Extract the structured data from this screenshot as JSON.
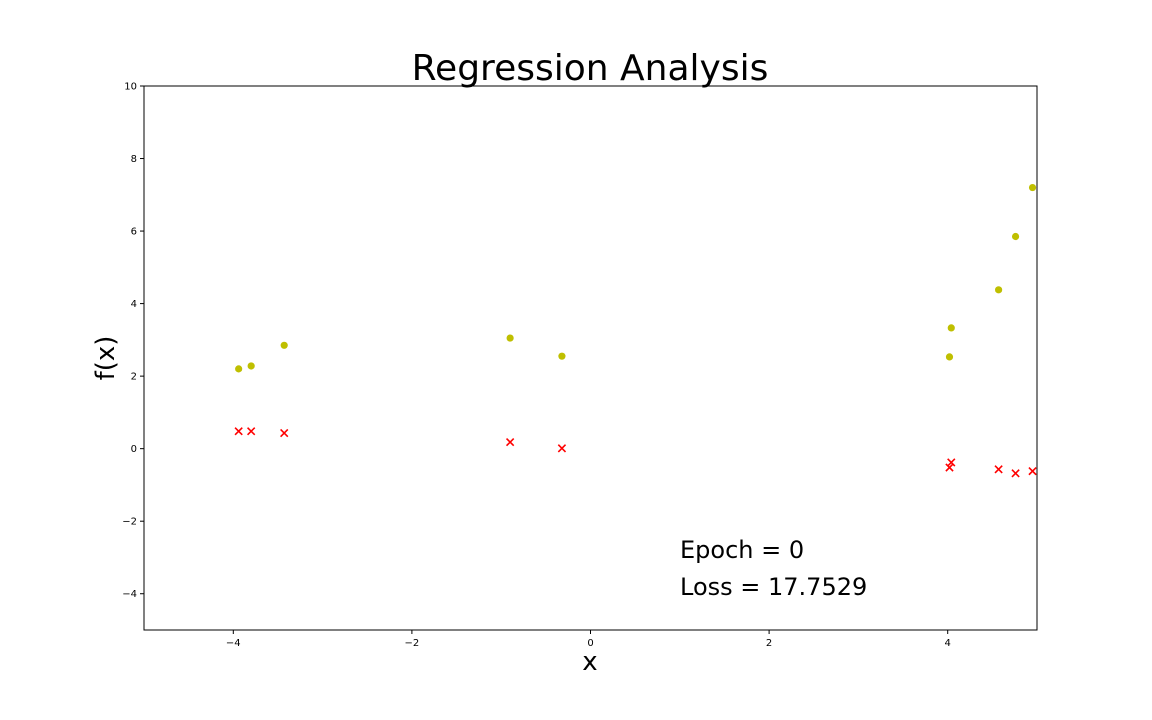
{
  "chart_data": {
    "type": "scatter",
    "title": "Regression Analysis",
    "xlabel": "x",
    "ylabel": "f(x)",
    "xlim": [
      -5,
      5
    ],
    "ylim": [
      -5,
      10
    ],
    "xticks": [
      -4,
      -2,
      0,
      2,
      4
    ],
    "xtick_labels": [
      "−4",
      "−2",
      "0",
      "2",
      "4"
    ],
    "yticks": [
      -4,
      -2,
      0,
      2,
      4,
      6,
      8,
      10
    ],
    "ytick_labels": [
      "−4",
      "−2",
      "0",
      "2",
      "4",
      "6",
      "8",
      "10"
    ],
    "grid": false,
    "series": [
      {
        "marker": "circle",
        "color": "#bfbf00",
        "points": [
          [
            -3.94,
            2.2
          ],
          [
            -3.8,
            2.28
          ],
          [
            -3.43,
            2.85
          ],
          [
            -0.9,
            3.05
          ],
          [
            -0.32,
            2.55
          ],
          [
            4.02,
            2.53
          ],
          [
            4.04,
            3.33
          ],
          [
            4.57,
            4.38
          ],
          [
            4.76,
            5.85
          ],
          [
            4.95,
            7.2
          ]
        ]
      },
      {
        "marker": "x",
        "color": "#ff0000",
        "points": [
          [
            -3.94,
            0.48
          ],
          [
            -3.8,
            0.48
          ],
          [
            -3.43,
            0.43
          ],
          [
            -0.9,
            0.18
          ],
          [
            -0.32,
            0.01
          ],
          [
            4.02,
            -0.52
          ],
          [
            4.04,
            -0.38
          ],
          [
            4.57,
            -0.57
          ],
          [
            4.76,
            -0.68
          ],
          [
            4.95,
            -0.62
          ]
        ]
      }
    ],
    "annotations": [
      {
        "text": "Epoch = 0",
        "x": 1.0,
        "y": -3.0
      },
      {
        "text": "Loss = 17.7529",
        "x": 1.0,
        "y": -4.05
      }
    ]
  }
}
